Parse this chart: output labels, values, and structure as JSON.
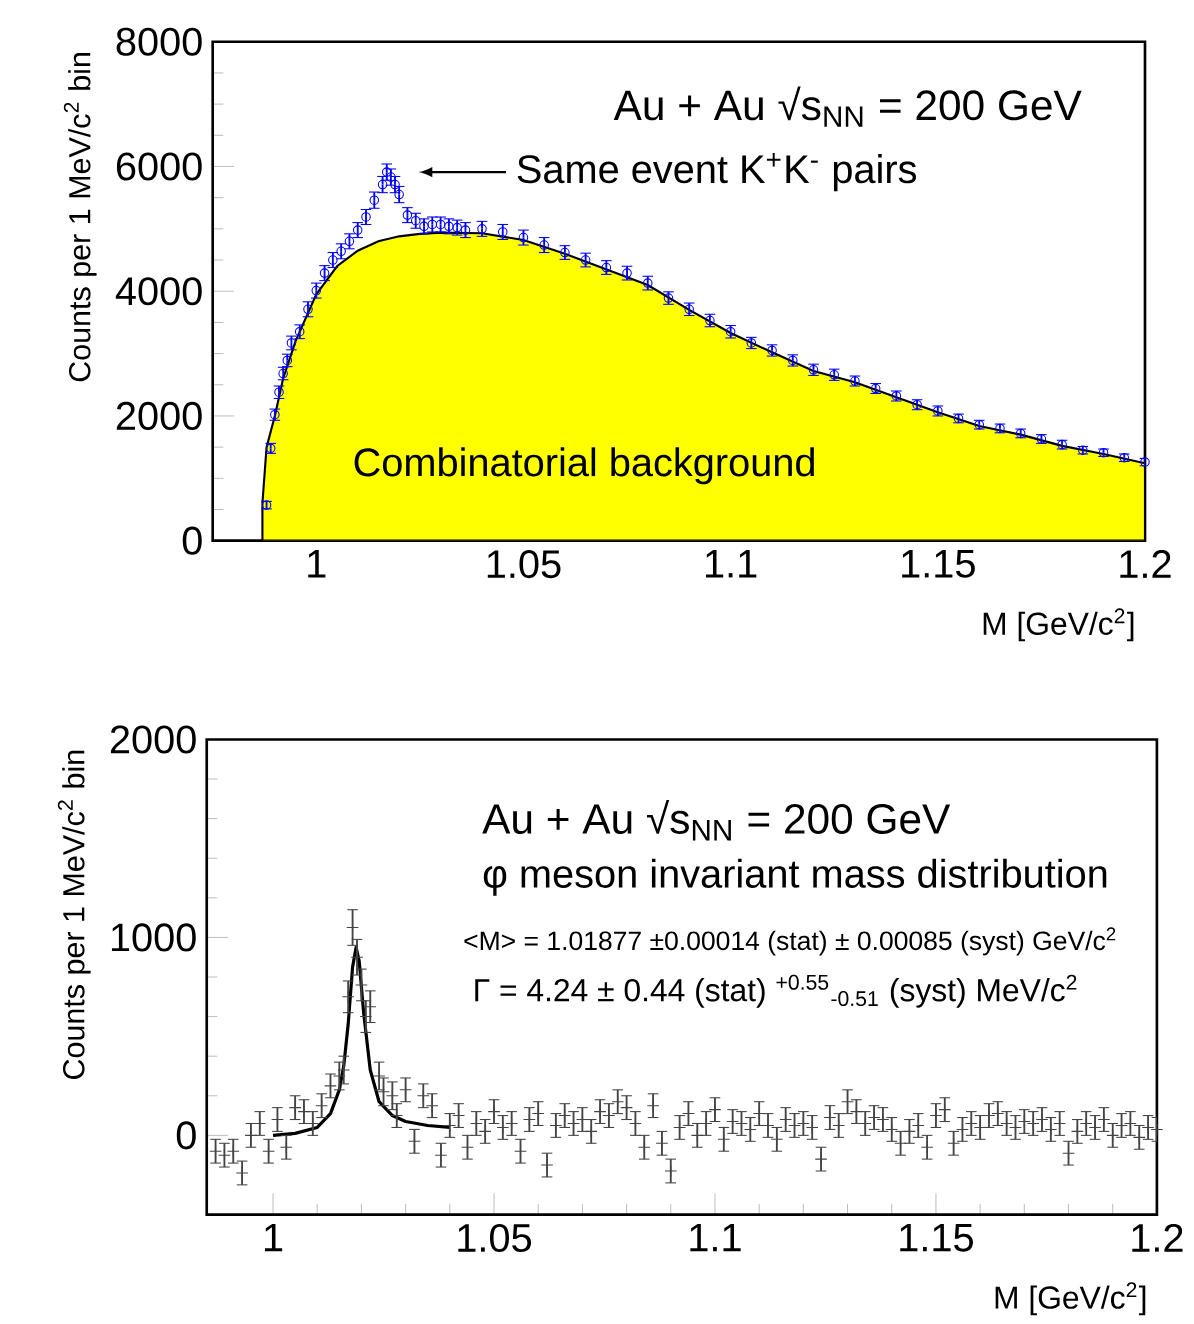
{
  "chart_data": [
    {
      "type": "scatter",
      "xlabel": "M [GeV/c$^{2}$]",
      "ylabel": "Counts per 1 MeV/c$^{2}$ bin",
      "xlim": [
        0.975,
        1.2
      ],
      "ylim": [
        0,
        8000
      ],
      "xticks": [
        1,
        1.05,
        1.1,
        1.15,
        1.2
      ],
      "yticks": [
        0,
        2000,
        4000,
        6000,
        8000
      ],
      "annotations": [
        "Au + Au √s$_{NN}$ = 200 GeV"
      ],
      "series": [
        {
          "name": "Combinatorial background",
          "type": "area",
          "color": "#ffff00",
          "x": [
            0.987,
            0.988,
            0.99,
            0.992,
            0.995,
            1.0,
            1.005,
            1.01,
            1.015,
            1.02,
            1.025,
            1.03,
            1.04,
            1.05,
            1.06,
            1.07,
            1.08,
            1.09,
            1.1,
            1.11,
            1.12,
            1.13,
            1.14,
            1.15,
            1.16,
            1.17,
            1.18,
            1.19,
            1.2
          ],
          "values": [
            600,
            1500,
            2000,
            2600,
            3200,
            3950,
            4400,
            4650,
            4800,
            4880,
            4920,
            4940,
            4930,
            4820,
            4600,
            4350,
            4100,
            3700,
            3330,
            3020,
            2720,
            2540,
            2300,
            2060,
            1840,
            1700,
            1520,
            1390,
            1240
          ]
        },
        {
          "name": "Same event K$^{+}$K$^{-}$ pairs",
          "marker": "circle",
          "color": "#0000ff",
          "x": [
            0.988,
            0.989,
            0.99,
            0.991,
            0.992,
            0.993,
            0.994,
            0.996,
            0.998,
            1.0,
            1.002,
            1.004,
            1.006,
            1.008,
            1.01,
            1.012,
            1.014,
            1.016,
            1.017,
            1.018,
            1.019,
            1.02,
            1.022,
            1.024,
            1.026,
            1.028,
            1.03,
            1.032,
            1.034,
            1.036,
            1.04,
            1.045,
            1.05,
            1.055,
            1.06,
            1.065,
            1.07,
            1.075,
            1.08,
            1.085,
            1.09,
            1.095,
            1.1,
            1.105,
            1.11,
            1.115,
            1.12,
            1.125,
            1.13,
            1.135,
            1.14,
            1.145,
            1.15,
            1.155,
            1.16,
            1.165,
            1.17,
            1.175,
            1.18,
            1.185,
            1.19,
            1.195,
            1.2
          ],
          "values": [
            570,
            1480,
            2020,
            2380,
            2680,
            2890,
            3170,
            3350,
            3710,
            4010,
            4290,
            4500,
            4640,
            4800,
            4980,
            5190,
            5460,
            5710,
            5910,
            5830,
            5710,
            5550,
            5220,
            5130,
            5040,
            5070,
            5070,
            5040,
            5020,
            4980,
            5000,
            4950,
            4860,
            4740,
            4620,
            4500,
            4380,
            4290,
            4130,
            3890,
            3710,
            3530,
            3350,
            3170,
            3050,
            2890,
            2740,
            2660,
            2560,
            2440,
            2320,
            2180,
            2080,
            1960,
            1860,
            1800,
            1720,
            1630,
            1540,
            1450,
            1410,
            1330,
            1260
          ],
          "errors": [
            60,
            80,
            90,
            100,
            100,
            100,
            110,
            110,
            120,
            120,
            120,
            120,
            120,
            120,
            120,
            120,
            130,
            130,
            130,
            130,
            130,
            130,
            120,
            120,
            120,
            120,
            120,
            120,
            120,
            120,
            120,
            120,
            120,
            120,
            110,
            110,
            110,
            110,
            110,
            100,
            100,
            100,
            100,
            90,
            90,
            90,
            90,
            90,
            80,
            80,
            80,
            80,
            80,
            70,
            70,
            70,
            70,
            70,
            70,
            60,
            60,
            60,
            60
          ]
        }
      ]
    },
    {
      "type": "scatter",
      "xlabel": "M [GeV/c$^{2}$]",
      "ylabel": "Counts per 1 MeV/c$^{2}$ bin",
      "xlim": [
        0.985,
        1.2
      ],
      "ylim": [
        -400,
        2000
      ],
      "xticks": [
        1,
        1.05,
        1.1,
        1.15,
        1.2
      ],
      "yticks": [
        0,
        1000,
        2000
      ],
      "annotations": [
        "Au + Au √s$_{NN}$ = 200 GeV",
        "φ meson invariant mass distribution",
        "<M> = 1.01877 ±0.00014 (stat) ± 0.00085 (syst) GeV/c$^{2}$",
        "Γ = 4.24 ± 0.44 (stat) $^{+0.55}$$_{-0.51}$ (syst) MeV/c$^{2}$"
      ],
      "series": [
        {
          "marker": "cross",
          "color": "#444444",
          "x": [
            0.987,
            0.989,
            0.991,
            0.993,
            0.995,
            0.997,
            0.999,
            1.001,
            1.003,
            1.005,
            1.007,
            1.009,
            1.011,
            1.013,
            1.015,
            1.016,
            1.017,
            1.018,
            1.019,
            1.02,
            1.021,
            1.022,
            1.024,
            1.025,
            1.027,
            1.028,
            1.03,
            1.032,
            1.034,
            1.036,
            1.038,
            1.04,
            1.042,
            1.044,
            1.046,
            1.048,
            1.05,
            1.052,
            1.054,
            1.056,
            1.058,
            1.06,
            1.062,
            1.064,
            1.066,
            1.068,
            1.07,
            1.072,
            1.074,
            1.076,
            1.078,
            1.08,
            1.082,
            1.084,
            1.086,
            1.088,
            1.09,
            1.092,
            1.094,
            1.096,
            1.098,
            1.1,
            1.102,
            1.104,
            1.106,
            1.108,
            1.11,
            1.112,
            1.114,
            1.116,
            1.118,
            1.12,
            1.122,
            1.124,
            1.126,
            1.128,
            1.13,
            1.132,
            1.134,
            1.136,
            1.138,
            1.14,
            1.142,
            1.144,
            1.146,
            1.148,
            1.15,
            1.152,
            1.154,
            1.156,
            1.158,
            1.16,
            1.162,
            1.164,
            1.166,
            1.168,
            1.17,
            1.172,
            1.174,
            1.176,
            1.178,
            1.18,
            1.182,
            1.184,
            1.186,
            1.188,
            1.19,
            1.192,
            1.194,
            1.196,
            1.198,
            1.2
          ],
          "values": [
            -80,
            -100,
            -80,
            -190,
            0,
            60,
            -80,
            80,
            -60,
            140,
            120,
            60,
            150,
            250,
            300,
            330,
            700,
            1050,
            900,
            760,
            600,
            650,
            300,
            220,
            200,
            100,
            230,
            -30,
            200,
            150,
            -100,
            50,
            100,
            -60,
            60,
            20,
            120,
            40,
            60,
            -80,
            80,
            110,
            -150,
            50,
            100,
            60,
            80,
            20,
            120,
            100,
            170,
            140,
            60,
            -60,
            150,
            -40,
            -180,
            40,
            110,
            0,
            60,
            130,
            -20,
            70,
            60,
            30,
            110,
            50,
            -20,
            80,
            50,
            60,
            40,
            -120,
            90,
            50,
            170,
            120,
            60,
            90,
            80,
            30,
            -40,
            20,
            50,
            -60,
            100,
            130,
            -40,
            30,
            60,
            40,
            100,
            110,
            60,
            40,
            70,
            60,
            80,
            30,
            60,
            -90,
            20,
            60,
            40,
            80,
            0,
            50,
            60,
            -10,
            40,
            30
          ],
          "errors": [
            60,
            60,
            60,
            60,
            60,
            60,
            60,
            60,
            60,
            60,
            60,
            60,
            60,
            60,
            70,
            70,
            80,
            90,
            90,
            80,
            80,
            80,
            70,
            70,
            70,
            60,
            60,
            60,
            60,
            60,
            60,
            60,
            60,
            60,
            60,
            60,
            60,
            60,
            60,
            60,
            60,
            60,
            60,
            60,
            60,
            60,
            60,
            60,
            60,
            60,
            60,
            60,
            60,
            60,
            60,
            60,
            60,
            60,
            60,
            60,
            60,
            60,
            60,
            60,
            60,
            60,
            60,
            60,
            60,
            60,
            60,
            60,
            60,
            60,
            60,
            60,
            60,
            60,
            60,
            60,
            60,
            60,
            60,
            60,
            60,
            60,
            60,
            60,
            60,
            60,
            60,
            60,
            60,
            60,
            60,
            60,
            60,
            60,
            60,
            60,
            60,
            60,
            60,
            60,
            60,
            60,
            60,
            60,
            60,
            60,
            60,
            60
          ]
        },
        {
          "type": "line",
          "color": "#000000",
          "x": [
            1.0,
            1.005,
            1.01,
            1.013,
            1.015,
            1.016,
            1.017,
            1.018,
            1.0188,
            1.0195,
            1.0205,
            1.022,
            1.024,
            1.027,
            1.03,
            1.035,
            1.04
          ],
          "values": [
            0,
            10,
            40,
            110,
            230,
            350,
            560,
            850,
            950,
            880,
            620,
            330,
            170,
            100,
            70,
            50,
            40
          ]
        }
      ]
    }
  ]
}
